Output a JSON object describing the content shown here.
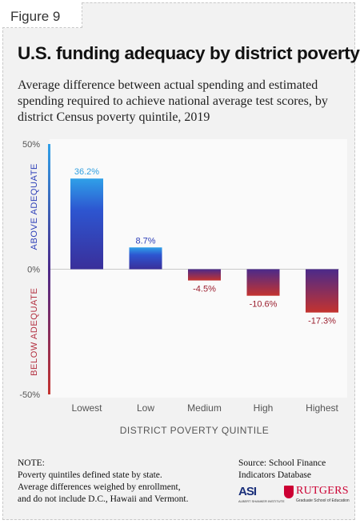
{
  "figure_label": "Figure 9",
  "title": "U.S. funding adequacy by district poverty",
  "subtitle": "Average difference between actual spending and estimated spending required to achieve national average test scores, by district Census poverty quintile, 2019",
  "chart_data": {
    "type": "bar",
    "categories": [
      "Lowest",
      "Low",
      "Medium",
      "High",
      "Highest"
    ],
    "values": [
      36.2,
      8.7,
      -4.5,
      -10.6,
      -17.3
    ],
    "data_labels": [
      "36.2%",
      "8.7%",
      "-4.5%",
      "-10.6%",
      "-17.3%"
    ],
    "xlabel": "DISTRICT POVERTY QUINTILE",
    "ylim": [
      -50,
      50
    ],
    "yticks": [
      50,
      0,
      -50
    ],
    "ytick_labels": [
      "50%",
      "0%",
      "-50%"
    ],
    "above_label": "ABOVE ADEQUATE",
    "below_label": "BELOW ADEQUATE",
    "colors": {
      "positive_top": "#2fa0e8",
      "positive_mid": "#2d3fb8",
      "neutral": "#4b2a8a",
      "negative_bottom": "#c4332f",
      "pos_label": "#2f9fe0",
      "neg_label": "#9b1f2f"
    }
  },
  "note": {
    "heading": "NOTE:",
    "lines": [
      "Poverty quintiles defined state by state.",
      "Average differences weighed by enrollment,",
      "and do not include D.C., Hawaii and Vermont."
    ]
  },
  "source": {
    "line1": "Source:  School Finance",
    "line2": "Indicators Database"
  },
  "logos": {
    "asi": "ASI",
    "asi_sub": "ALBERT SHANKER INSTITUTE",
    "rutgers": "RUTGERS",
    "rutgers_sub": "Graduate School of Education"
  }
}
